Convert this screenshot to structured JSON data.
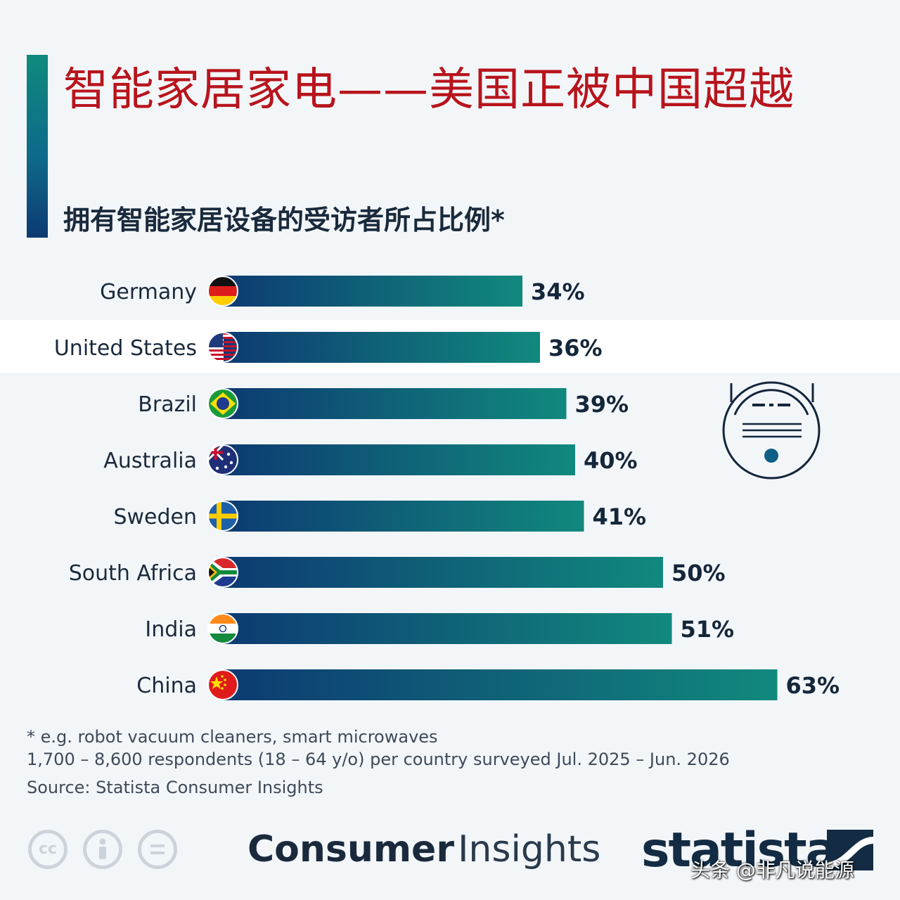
{
  "header": {
    "title": "智能家居家电——美国正被中国超越",
    "subtitle": "拥有智能家居设备的受访者所占比例*"
  },
  "chart_data": {
    "type": "bar",
    "orientation": "horizontal",
    "categories": [
      "Germany",
      "United States",
      "Brazil",
      "Australia",
      "Sweden",
      "South Africa",
      "India",
      "China"
    ],
    "values": [
      34,
      36,
      39,
      40,
      41,
      50,
      51,
      63
    ],
    "value_labels": [
      "34%",
      "36%",
      "39%",
      "40%",
      "41%",
      "50%",
      "51%",
      "63%"
    ],
    "unit": "%",
    "highlighted_category": "United States",
    "xlim": [
      0,
      100
    ],
    "bar_gradient": [
      "#0d3a72",
      "#11897d"
    ],
    "flag_icons": [
      "germany-flag-icon",
      "united-states-flag-icon",
      "brazil-flag-icon",
      "australia-flag-icon",
      "sweden-flag-icon",
      "south-africa-flag-icon",
      "india-flag-icon",
      "china-flag-icon"
    ]
  },
  "footer": {
    "note": "* e.g. robot vacuum cleaners, smart microwaves",
    "respondents": "1,700 – 8,600 respondents (18 – 64 y/o) per country surveyed Jul. 2025 – Jun. 2026",
    "source": "Source: Statista Consumer Insights",
    "brand_bold": "Consumer",
    "brand_light": "Insights",
    "logo": "statista",
    "cc_label": "cc",
    "watermark": "头条 @非凡说能源"
  },
  "colors": {
    "title": "#b8141c",
    "text": "#1a2a3c",
    "accent_top": "#0f8a7c",
    "accent_bottom": "#0d3a72",
    "background": "#f3f6f9"
  }
}
